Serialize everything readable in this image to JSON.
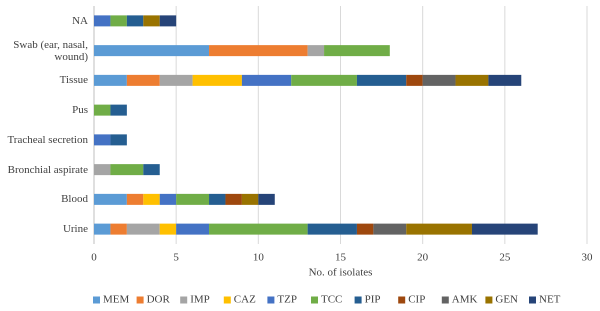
{
  "chart_data": {
    "type": "stacked-barh",
    "categories": [
      "NA",
      "Swab (ear, nasal, wound)",
      "Tissue",
      "Pus",
      "Tracheal secretion",
      "Bronchial aspirate",
      "Blood",
      "Urine"
    ],
    "series": [
      {
        "name": "MEM",
        "color": "#5b9bd5",
        "values": [
          0,
          7,
          2,
          0,
          0,
          0,
          2,
          1
        ]
      },
      {
        "name": "DOR",
        "color": "#ed7d31",
        "values": [
          0,
          6,
          2,
          0,
          0,
          0,
          1,
          1
        ]
      },
      {
        "name": "IMP",
        "color": "#a5a5a5",
        "values": [
          0,
          1,
          2,
          0,
          0,
          1,
          0,
          2
        ]
      },
      {
        "name": "CAZ",
        "color": "#ffc000",
        "values": [
          0,
          0,
          3,
          0,
          0,
          0,
          1,
          1
        ]
      },
      {
        "name": "TZP",
        "color": "#4472c4",
        "values": [
          1,
          0,
          3,
          0,
          1,
          0,
          1,
          2
        ]
      },
      {
        "name": "TCC",
        "color": "#70ad47",
        "values": [
          1,
          4,
          4,
          1,
          0,
          2,
          2,
          6
        ]
      },
      {
        "name": "PIP",
        "color": "#255e91",
        "values": [
          1,
          0,
          3,
          1,
          1,
          1,
          1,
          3
        ]
      },
      {
        "name": "CIP",
        "color": "#9e480e",
        "values": [
          0,
          0,
          1,
          0,
          0,
          0,
          1,
          1
        ]
      },
      {
        "name": "AMK",
        "color": "#636363",
        "values": [
          0,
          0,
          2,
          0,
          0,
          0,
          0,
          2
        ]
      },
      {
        "name": "GEN",
        "color": "#997300",
        "values": [
          1,
          0,
          2,
          0,
          0,
          0,
          1,
          4
        ]
      },
      {
        "name": "NET",
        "color": "#264478",
        "values": [
          1,
          0,
          2,
          0,
          0,
          0,
          1,
          4
        ]
      }
    ],
    "x_label": "No. of isolates",
    "xlim": [
      0,
      30
    ],
    "xticks": [
      0,
      5,
      10,
      15,
      20,
      25,
      30
    ],
    "grid": true,
    "legend": "bottom"
  }
}
